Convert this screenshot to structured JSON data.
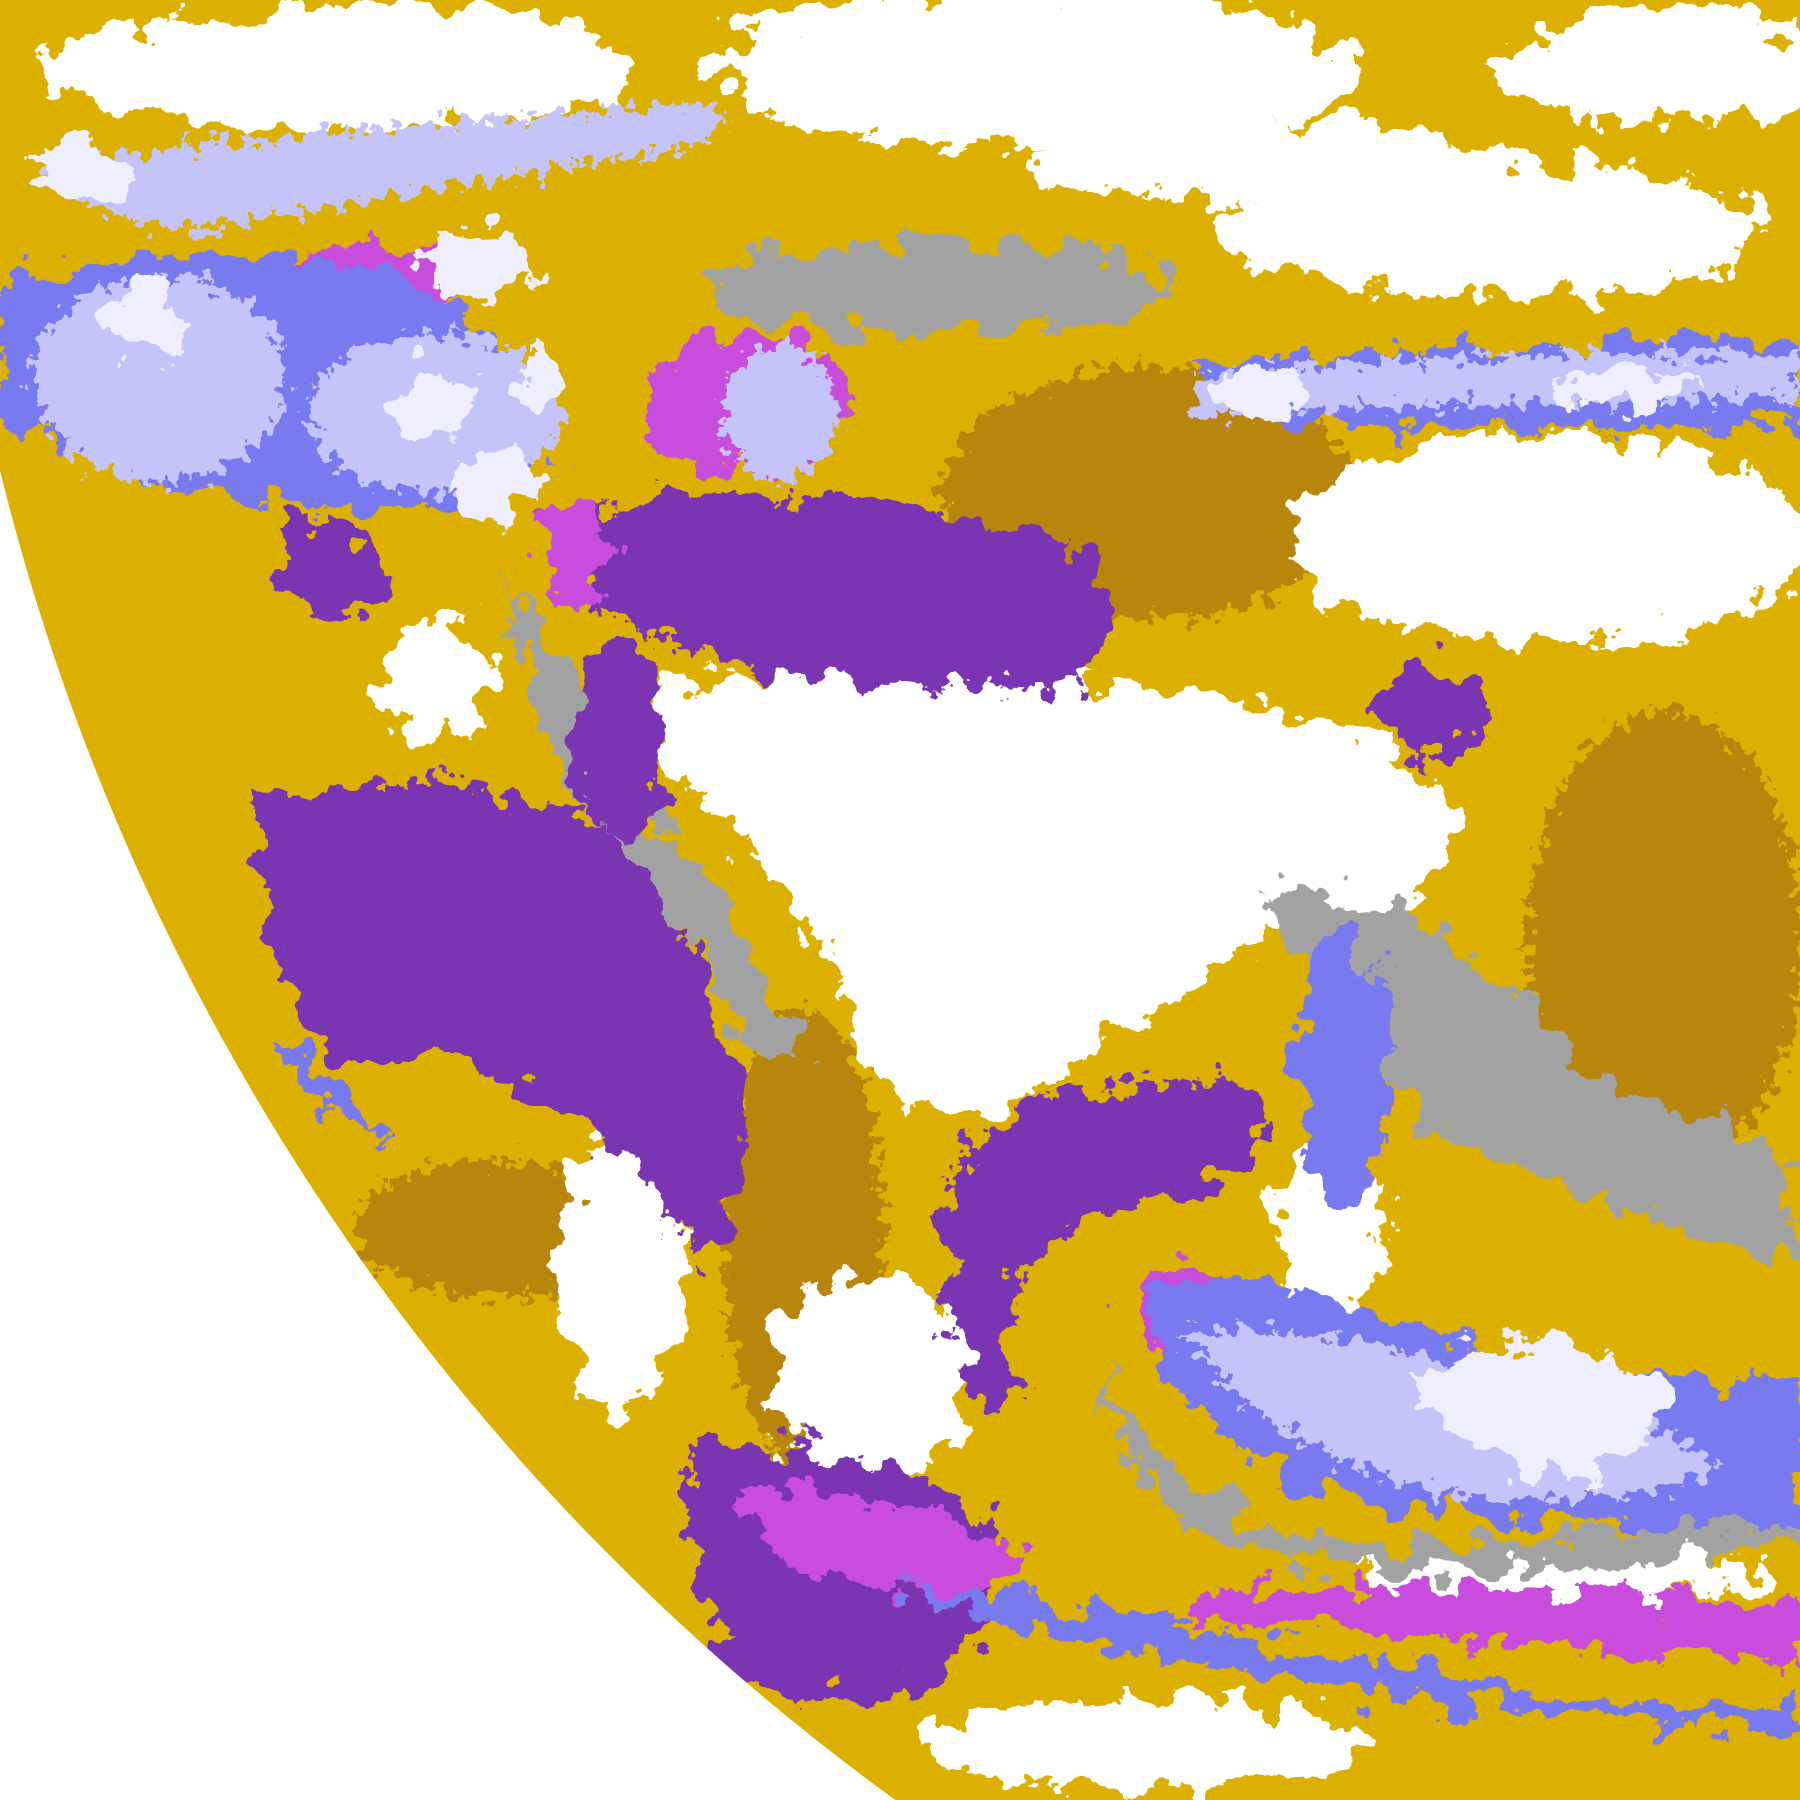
{
  "image": {
    "kind": "false-color satellite cloud classification, full-disk limb",
    "palette": {
      "background": "#ffffff",
      "clear": "#ffffff",
      "gold": "#dcb000",
      "dark_gold": "#b8860b",
      "purple": "#7b35b2",
      "magenta": "#c84ddc",
      "blue_violet": "#7a7af0",
      "lavender": "#c4c4fa",
      "pale_lavender": "#eeeeff",
      "gray": "#a2a2a2"
    }
  }
}
